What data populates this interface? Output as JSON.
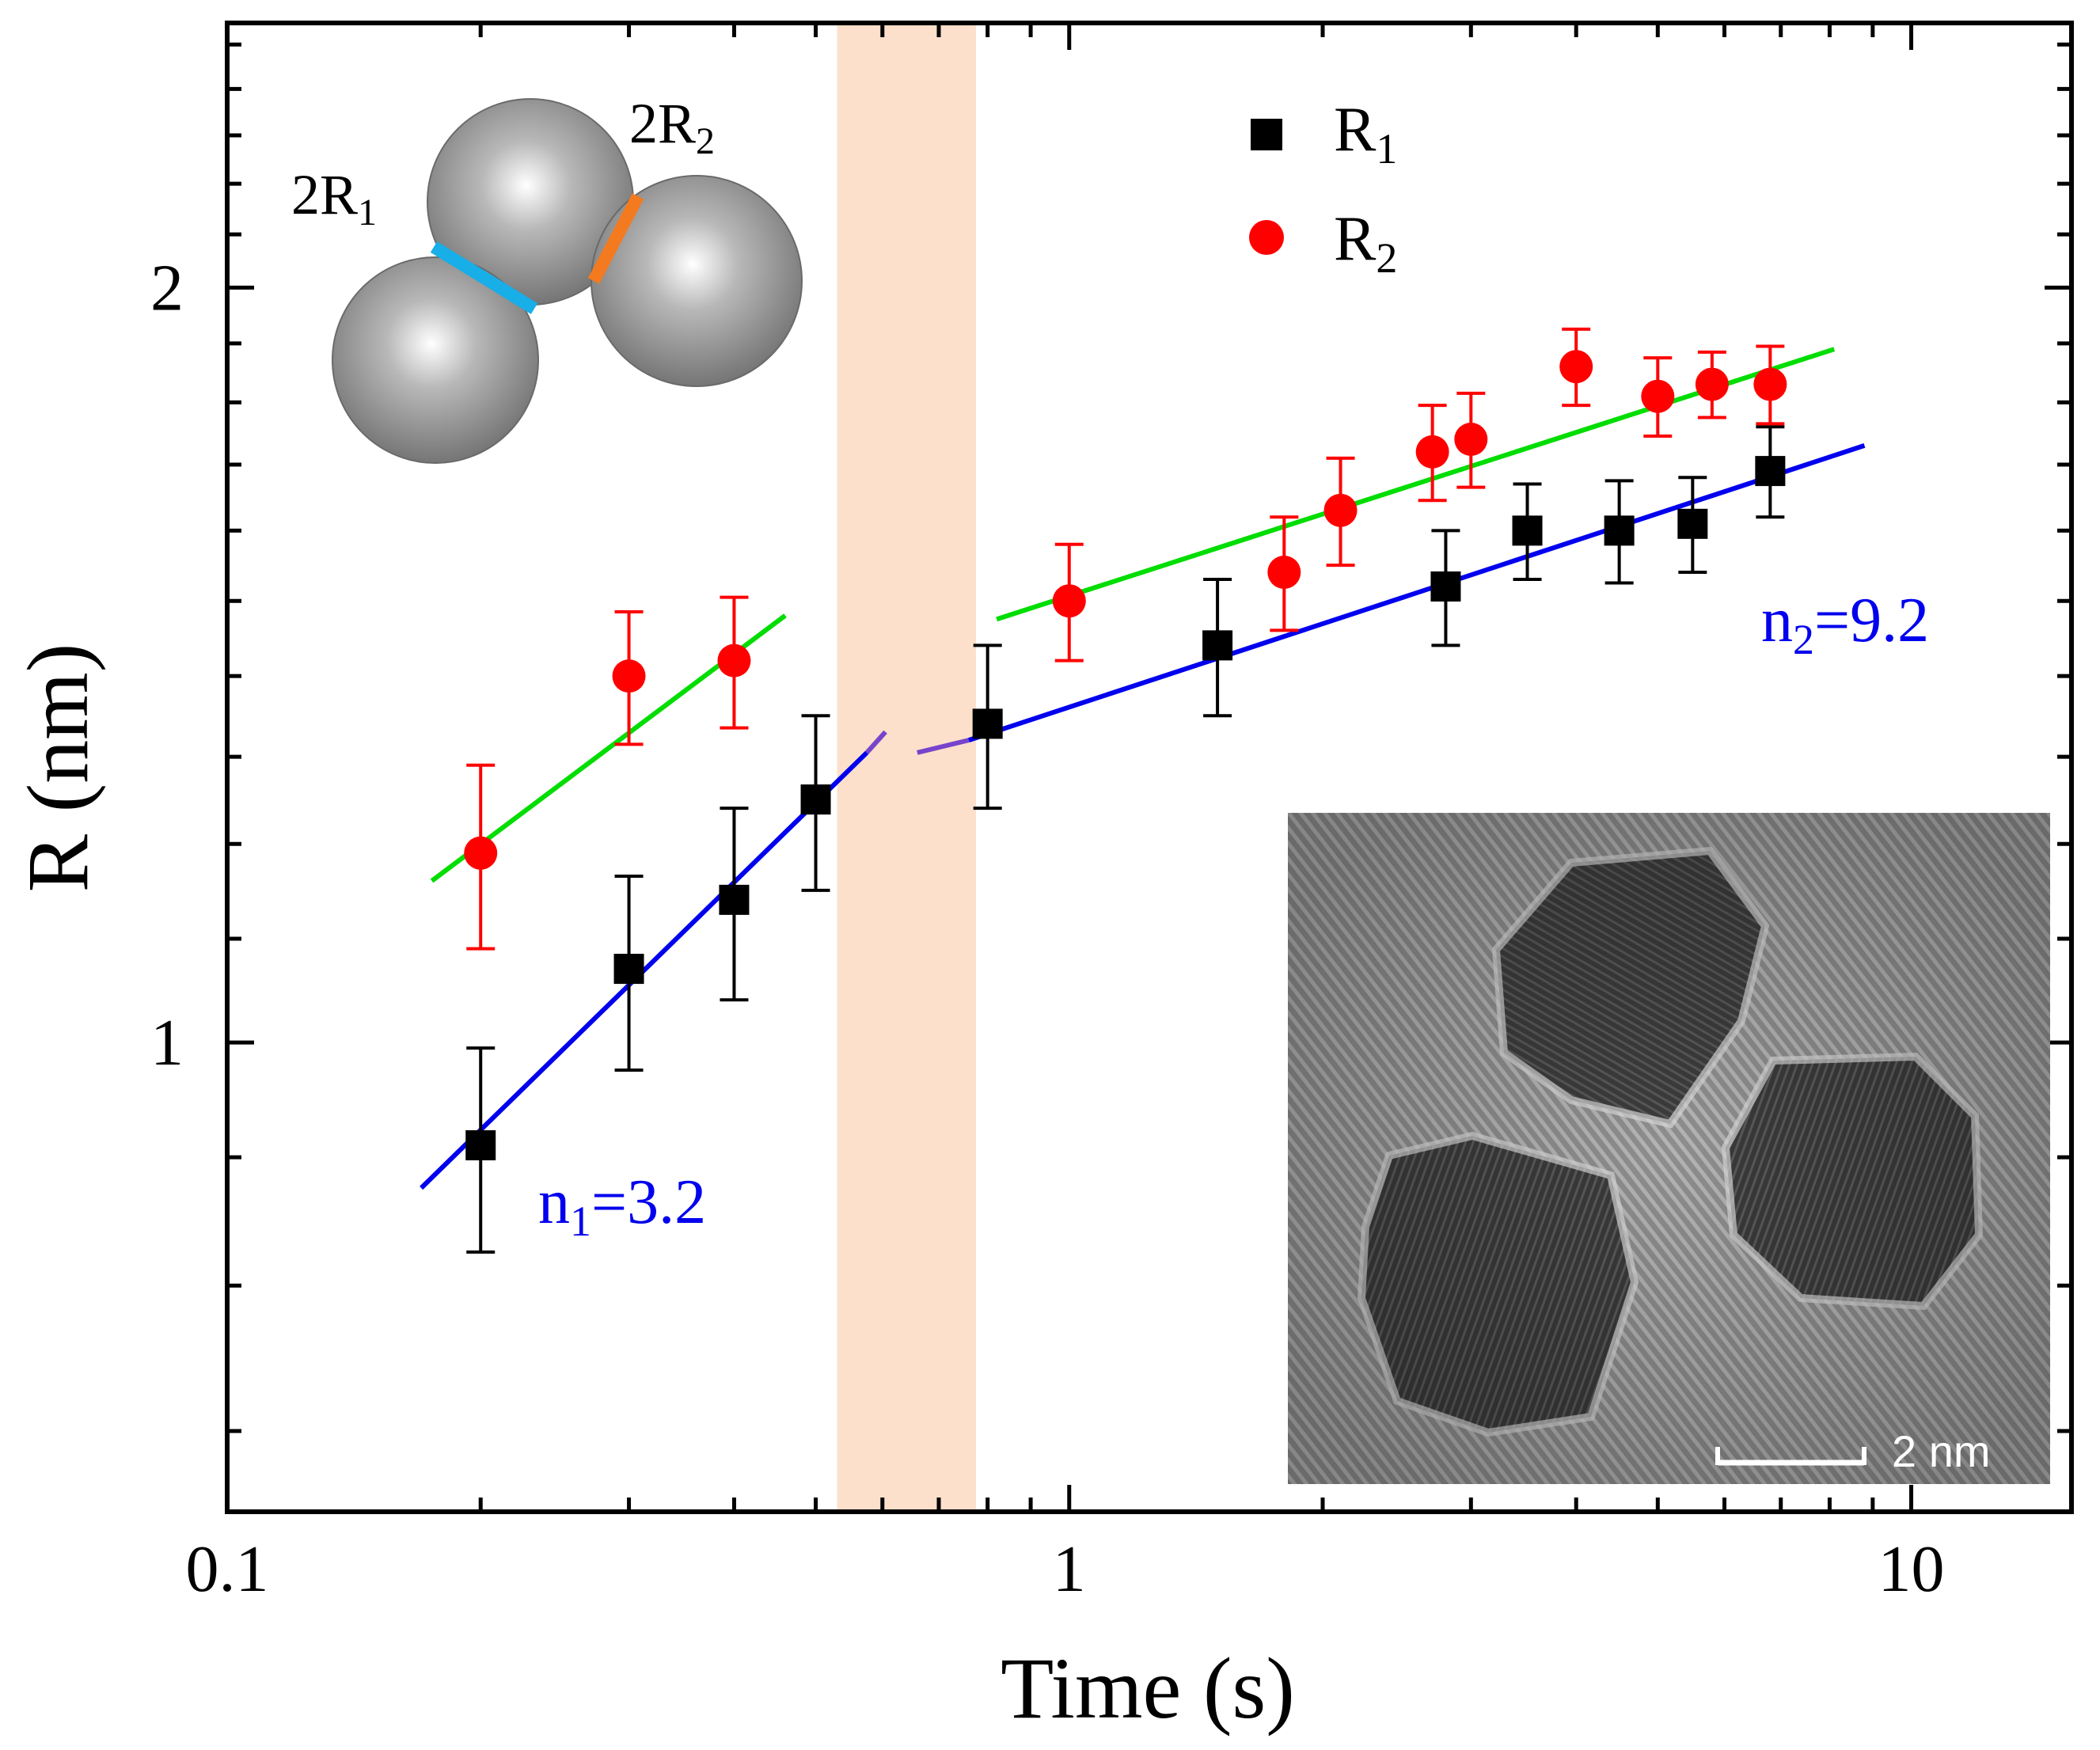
{
  "chart_data": {
    "type": "scatter",
    "xscale": "log",
    "yscale": "log",
    "xlim": [
      0.1,
      15.5
    ],
    "ylim": [
      0.65,
      2.55
    ],
    "xlabel": "Time (s)",
    "ylabel": "R (nm)",
    "x_ticks": [
      {
        "value": 0.1,
        "label": "0.1"
      },
      {
        "value": 1,
        "label": "1"
      },
      {
        "value": 10,
        "label": "10"
      }
    ],
    "y_ticks": [
      {
        "value": 1,
        "label": "1"
      },
      {
        "value": 2,
        "label": "2"
      }
    ],
    "legend": {
      "placement": "top-center",
      "entries": [
        {
          "base": "R",
          "sub": "1",
          "color": "#000000",
          "marker": "square"
        },
        {
          "base": "R",
          "sub": "2",
          "color": "#ff0000",
          "marker": "circle"
        }
      ]
    },
    "series": [
      {
        "name": "R1",
        "color": "#000000",
        "marker": "square",
        "points": [
          {
            "x": 0.2,
            "y": 0.91,
            "err": 0.085
          },
          {
            "x": 0.3,
            "y": 1.07,
            "err": 0.095
          },
          {
            "x": 0.4,
            "y": 1.14,
            "err": 0.1
          },
          {
            "x": 0.5,
            "y": 1.25,
            "err": 0.1
          },
          {
            "x": 0.8,
            "y": 1.34,
            "err": 0.1
          },
          {
            "x": 1.5,
            "y": 1.44,
            "err": 0.09
          },
          {
            "x": 2.8,
            "y": 1.52,
            "err": 0.08
          },
          {
            "x": 3.5,
            "y": 1.6,
            "err": 0.07
          },
          {
            "x": 4.5,
            "y": 1.6,
            "err": 0.075
          },
          {
            "x": 5.5,
            "y": 1.61,
            "err": 0.07
          },
          {
            "x": 6.8,
            "y": 1.69,
            "err": 0.07
          }
        ]
      },
      {
        "name": "R2",
        "color": "#ff0000",
        "marker": "circle",
        "points": [
          {
            "x": 0.2,
            "y": 1.19,
            "err": 0.1
          },
          {
            "x": 0.3,
            "y": 1.4,
            "err": 0.085
          },
          {
            "x": 0.4,
            "y": 1.42,
            "err": 0.085
          },
          {
            "x": 1.0,
            "y": 1.5,
            "err": 0.08
          },
          {
            "x": 1.8,
            "y": 1.54,
            "err": 0.08
          },
          {
            "x": 2.1,
            "y": 1.63,
            "err": 0.08
          },
          {
            "x": 2.7,
            "y": 1.72,
            "err": 0.075
          },
          {
            "x": 3.0,
            "y": 1.74,
            "err": 0.075
          },
          {
            "x": 4.0,
            "y": 1.86,
            "err": 0.065
          },
          {
            "x": 5.0,
            "y": 1.81,
            "err": 0.065
          },
          {
            "x": 5.8,
            "y": 1.83,
            "err": 0.055
          },
          {
            "x": 6.8,
            "y": 1.83,
            "err": 0.065
          }
        ]
      }
    ],
    "fit_lines": [
      {
        "name": "R1 fit stage 1",
        "color": "#0000ee",
        "x": [
          0.17,
          0.575
        ],
        "y": [
          0.875,
          1.305
        ]
      },
      {
        "name": "R1 fit stage 1 extension",
        "color": "#7744cc",
        "x": [
          0.575,
          0.605
        ],
        "y": [
          1.305,
          1.33
        ]
      },
      {
        "name": "R1 fit stage 2 extension",
        "color": "#7744cc",
        "x": [
          0.66,
          0.76
        ],
        "y": [
          1.305,
          1.32
        ]
      },
      {
        "name": "R1 fit stage 2",
        "color": "#0000ee",
        "x": [
          0.76,
          8.8
        ],
        "y": [
          1.32,
          1.73
        ]
      },
      {
        "name": "R2 fit stage 1",
        "color": "#00dd00",
        "x": [
          0.175,
          0.46
        ],
        "y": [
          1.16,
          1.48
        ]
      },
      {
        "name": "R2 fit stage 2",
        "color": "#00dd00",
        "x": [
          0.82,
          8.1
        ],
        "y": [
          1.475,
          1.89
        ]
      }
    ],
    "shaded_region": {
      "x": [
        0.53,
        0.775
      ],
      "color": "#fce0cb"
    },
    "annotations": [
      {
        "base": "n",
        "sub": "1",
        "rest": "=3.2",
        "color": "#0000ee"
      },
      {
        "base": "n",
        "sub": "2",
        "rest": "=9.2",
        "color": "#0000ee"
      }
    ]
  },
  "schematic_inset": {
    "labels": [
      {
        "prefix": "2R",
        "sub": "1"
      },
      {
        "prefix": "2R",
        "sub": "2"
      }
    ],
    "neck_colors": [
      "#18aee8",
      "#f47a20"
    ]
  },
  "micrograph_inset": {
    "scale_bar_label": "2 nm"
  }
}
